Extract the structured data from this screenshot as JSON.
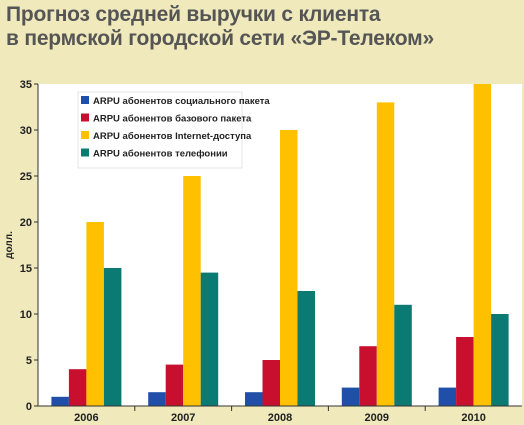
{
  "chart_data": {
    "type": "bar",
    "title": [
      "Прогноз средней выручки с клиента",
      "в пермской городской сети «ЭР-Телеком»"
    ],
    "ylabel": "долл.",
    "ylim": [
      0,
      35
    ],
    "yticks": [
      0,
      5,
      10,
      15,
      20,
      25,
      30,
      35
    ],
    "categories": [
      "2006",
      "2007",
      "2008",
      "2009",
      "2010"
    ],
    "legend_position": "top-left",
    "grid": false,
    "series": [
      {
        "name": "ARPU абонентов социального пакета",
        "color": "#1f4fa8",
        "values": [
          1,
          1.5,
          1.5,
          2,
          2
        ]
      },
      {
        "name": "ARPU абонентов базового пакета",
        "color": "#c8102e",
        "values": [
          4,
          4.5,
          5,
          6.5,
          7.5
        ]
      },
      {
        "name": "ARPU абонентов Internet-доступа",
        "color": "#ffc000",
        "values": [
          20,
          25,
          30,
          33,
          35
        ]
      },
      {
        "name": "ARPU абонентов телефонии",
        "color": "#0b7a72",
        "values": [
          15,
          14.5,
          12.5,
          11,
          10
        ]
      }
    ]
  }
}
